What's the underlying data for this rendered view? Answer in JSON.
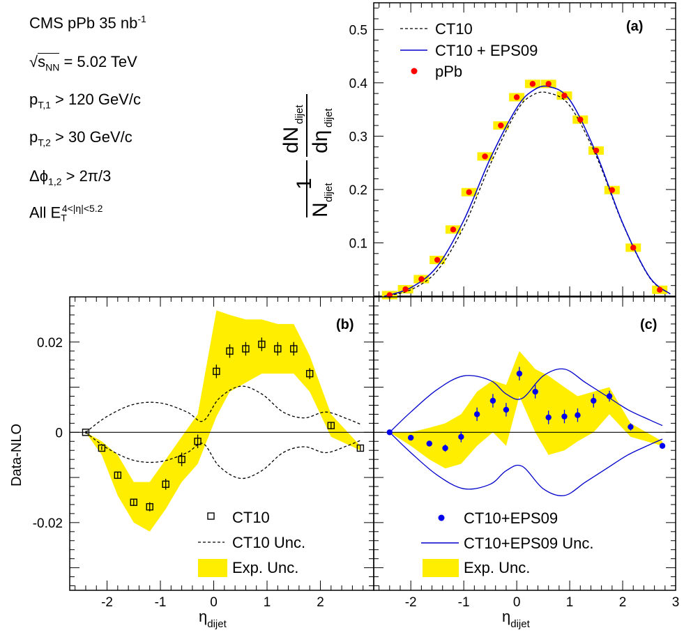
{
  "info": {
    "line1": "CMS pPb 35 nb",
    "line1_sup": "-1",
    "line2_root": "√",
    "line2_s": "s",
    "line2_sub": "NN",
    "line2_rest": "= 5.02 TeV",
    "line3_p": "p",
    "line3_sub": "T,1",
    "line3_rest": " > 120 GeV/c",
    "line4_p": "p",
    "line4_sub": "T,2",
    "line4_rest": " > 30 GeV/c",
    "line5_phi": "Δϕ",
    "line5_sub": "1,2",
    "line5_rest": " > 2π/3",
    "line6_all": "All E",
    "line6_sub": "T",
    "line6_sup": "4<|η|<5.2"
  },
  "chart_data": [
    {
      "type": "line",
      "panel_label": "(a)",
      "ylabel": {
        "one": "1",
        "n": "N",
        "n_sub": "dijet",
        "dN": "dN",
        "dN_sub": "dijet",
        "deta": "dη",
        "deta_sub": "dijet"
      },
      "xlim": [
        -2.7,
        3.0
      ],
      "ylim": [
        0,
        0.55
      ],
      "yticks": [
        "0.1",
        "0.2",
        "0.3",
        "0.4",
        "0.5"
      ],
      "legend_position": "top-left",
      "legend": [
        "CT10",
        "CT10 + EPS09",
        "pPb"
      ],
      "series": [
        {
          "name": "pPb",
          "style": "points",
          "color": "#ff0000",
          "box_color": "#ffee00",
          "x": [
            -2.4,
            -2.1,
            -1.8,
            -1.5,
            -1.2,
            -0.9,
            -0.6,
            -0.3,
            0.0,
            0.3,
            0.6,
            0.9,
            1.2,
            1.5,
            1.8,
            2.2,
            2.7
          ],
          "y": [
            0.002,
            0.013,
            0.032,
            0.068,
            0.125,
            0.195,
            0.262,
            0.32,
            0.373,
            0.398,
            0.398,
            0.376,
            0.331,
            0.273,
            0.199,
            0.091,
            0.012
          ]
        },
        {
          "name": "CT10",
          "style": "dashed",
          "color": "#000000",
          "x": [
            -2.5,
            -2.0,
            -1.5,
            -1.0,
            -0.5,
            0.0,
            0.3,
            0.6,
            1.0,
            1.5,
            2.0,
            2.5,
            2.9
          ],
          "y": [
            0.0,
            0.012,
            0.048,
            0.13,
            0.247,
            0.347,
            0.377,
            0.381,
            0.357,
            0.263,
            0.136,
            0.036,
            0.004
          ]
        },
        {
          "name": "CT10 + EPS09",
          "style": "solid",
          "color": "#0000cc",
          "x": [
            -2.5,
            -2.0,
            -1.5,
            -1.0,
            -0.5,
            0.0,
            0.3,
            0.6,
            1.0,
            1.5,
            2.0,
            2.5,
            2.9
          ],
          "y": [
            0.0,
            0.016,
            0.056,
            0.142,
            0.258,
            0.353,
            0.385,
            0.393,
            0.368,
            0.268,
            0.137,
            0.037,
            0.004
          ]
        }
      ]
    },
    {
      "type": "scatter",
      "panel_label": "(b)",
      "ylabel": "Data-NLO",
      "xlabel": "η",
      "xlabel_sub": "dijet",
      "xlim": [
        -2.7,
        3.0
      ],
      "ylim": [
        -0.035,
        0.03
      ],
      "xticks": [
        "-2",
        "-1",
        "0",
        "1",
        "2"
      ],
      "yticks": [
        "-0.02",
        "0",
        "0.02"
      ],
      "legend_position": "bottom-right",
      "legend": [
        "CT10",
        "CT10 Unc.",
        "Exp. Unc."
      ],
      "points": {
        "x": [
          -2.4,
          -2.1,
          -1.8,
          -1.5,
          -1.2,
          -0.9,
          -0.6,
          -0.3,
          0.05,
          0.3,
          0.6,
          0.9,
          1.2,
          1.5,
          1.8,
          2.2,
          2.75
        ],
        "y": [
          0.0,
          -0.0035,
          -0.0095,
          -0.0155,
          -0.0165,
          -0.0115,
          -0.006,
          -0.002,
          0.0135,
          0.018,
          0.0185,
          0.0195,
          0.0185,
          0.0185,
          0.013,
          0.0015,
          -0.0035
        ],
        "err": [
          0.0003,
          0.0004,
          0.0006,
          0.0008,
          0.001,
          0.0012,
          0.0015,
          0.0015,
          0.0015,
          0.0015,
          0.0015,
          0.0015,
          0.0015,
          0.0015,
          0.0012,
          0.0008,
          0.0006
        ]
      },
      "band": {
        "color": "#ffee00",
        "x": [
          -2.4,
          -2.1,
          -1.8,
          -1.5,
          -1.2,
          -0.9,
          -0.6,
          -0.3,
          0.05,
          0.3,
          0.6,
          0.9,
          1.2,
          1.5,
          1.8,
          2.2,
          2.75
        ],
        "lo": [
          0.0,
          -0.005,
          -0.014,
          -0.02,
          -0.022,
          -0.017,
          -0.011,
          -0.007,
          0.0035,
          0.009,
          0.011,
          0.013,
          0.013,
          0.013,
          0.009,
          -0.001,
          -0.004
        ],
        "hi": [
          0.0,
          -0.002,
          -0.005,
          -0.011,
          -0.011,
          -0.006,
          -0.001,
          0.004,
          0.027,
          0.026,
          0.025,
          0.025,
          0.024,
          0.024,
          0.017,
          0.004,
          -0.003
        ]
      },
      "unc_curve": {
        "color": "#000000",
        "x": [
          -2.4,
          -2.0,
          -1.5,
          -1.0,
          -0.5,
          -0.2,
          0.1,
          0.5,
          0.9,
          1.3,
          1.7,
          2.1,
          2.5,
          2.75
        ],
        "y": [
          0.0,
          0.0035,
          0.0062,
          0.0065,
          0.0045,
          0.0025,
          0.0075,
          0.0102,
          0.0085,
          0.0045,
          0.0032,
          0.0045,
          0.003,
          0.0018
        ]
      }
    },
    {
      "type": "scatter",
      "panel_label": "(c)",
      "xlabel": "η",
      "xlabel_sub": "dijet",
      "xlim": [
        -2.7,
        3.0
      ],
      "ylim": [
        -0.035,
        0.03
      ],
      "xticks": [
        "-2",
        "-1",
        "0",
        "1",
        "2",
        "3"
      ],
      "legend_position": "bottom-right",
      "legend": [
        "CT10+EPS09",
        "CT10+EPS09 Unc.",
        "Exp. Unc."
      ],
      "points": {
        "color": "#0000ee",
        "x": [
          -2.4,
          -2.0,
          -1.65,
          -1.35,
          -1.05,
          -0.75,
          -0.45,
          -0.2,
          0.05,
          0.35,
          0.6,
          0.9,
          1.15,
          1.45,
          1.75,
          2.15,
          2.75
        ],
        "y": [
          0.0,
          -0.0012,
          -0.0025,
          -0.0035,
          -0.001,
          0.004,
          0.007,
          0.005,
          0.013,
          0.009,
          0.0033,
          0.0035,
          0.0038,
          0.007,
          0.008,
          0.0012,
          -0.003
        ],
        "err": [
          0.0003,
          0.0005,
          0.0006,
          0.0008,
          0.0012,
          0.0015,
          0.0015,
          0.0015,
          0.0015,
          0.0015,
          0.0015,
          0.0015,
          0.0015,
          0.0015,
          0.0012,
          0.0008,
          0.0006
        ]
      },
      "band": {
        "color": "#ffee00",
        "x": [
          -2.4,
          -2.0,
          -1.65,
          -1.35,
          -1.05,
          -0.75,
          -0.45,
          -0.2,
          0.05,
          0.35,
          0.6,
          0.9,
          1.15,
          1.45,
          1.75,
          2.15,
          2.75
        ],
        "lo": [
          0.0,
          -0.003,
          -0.006,
          -0.008,
          -0.007,
          -0.003,
          0.0,
          -0.003,
          0.008,
          0.0,
          -0.005,
          -0.004,
          -0.002,
          0.0,
          0.004,
          -0.001,
          -0.003
        ],
        "hi": [
          0.0,
          0.0,
          0.001,
          0.002,
          0.004,
          0.009,
          0.0115,
          0.0105,
          0.018,
          0.014,
          0.0125,
          0.01,
          0.008,
          0.009,
          0.01,
          0.002,
          -0.002
        ]
      },
      "unc_curve": {
        "color": "#0000cc",
        "x": [
          -2.4,
          -2.0,
          -1.5,
          -1.0,
          -0.5,
          -0.2,
          0.1,
          0.5,
          0.9,
          1.3,
          1.7,
          2.1,
          2.5,
          2.75
        ],
        "y": [
          0.0,
          0.0045,
          0.0095,
          0.0125,
          0.0115,
          0.0085,
          0.0075,
          0.0125,
          0.014,
          0.011,
          0.008,
          0.005,
          0.0028,
          0.0015
        ]
      }
    }
  ]
}
